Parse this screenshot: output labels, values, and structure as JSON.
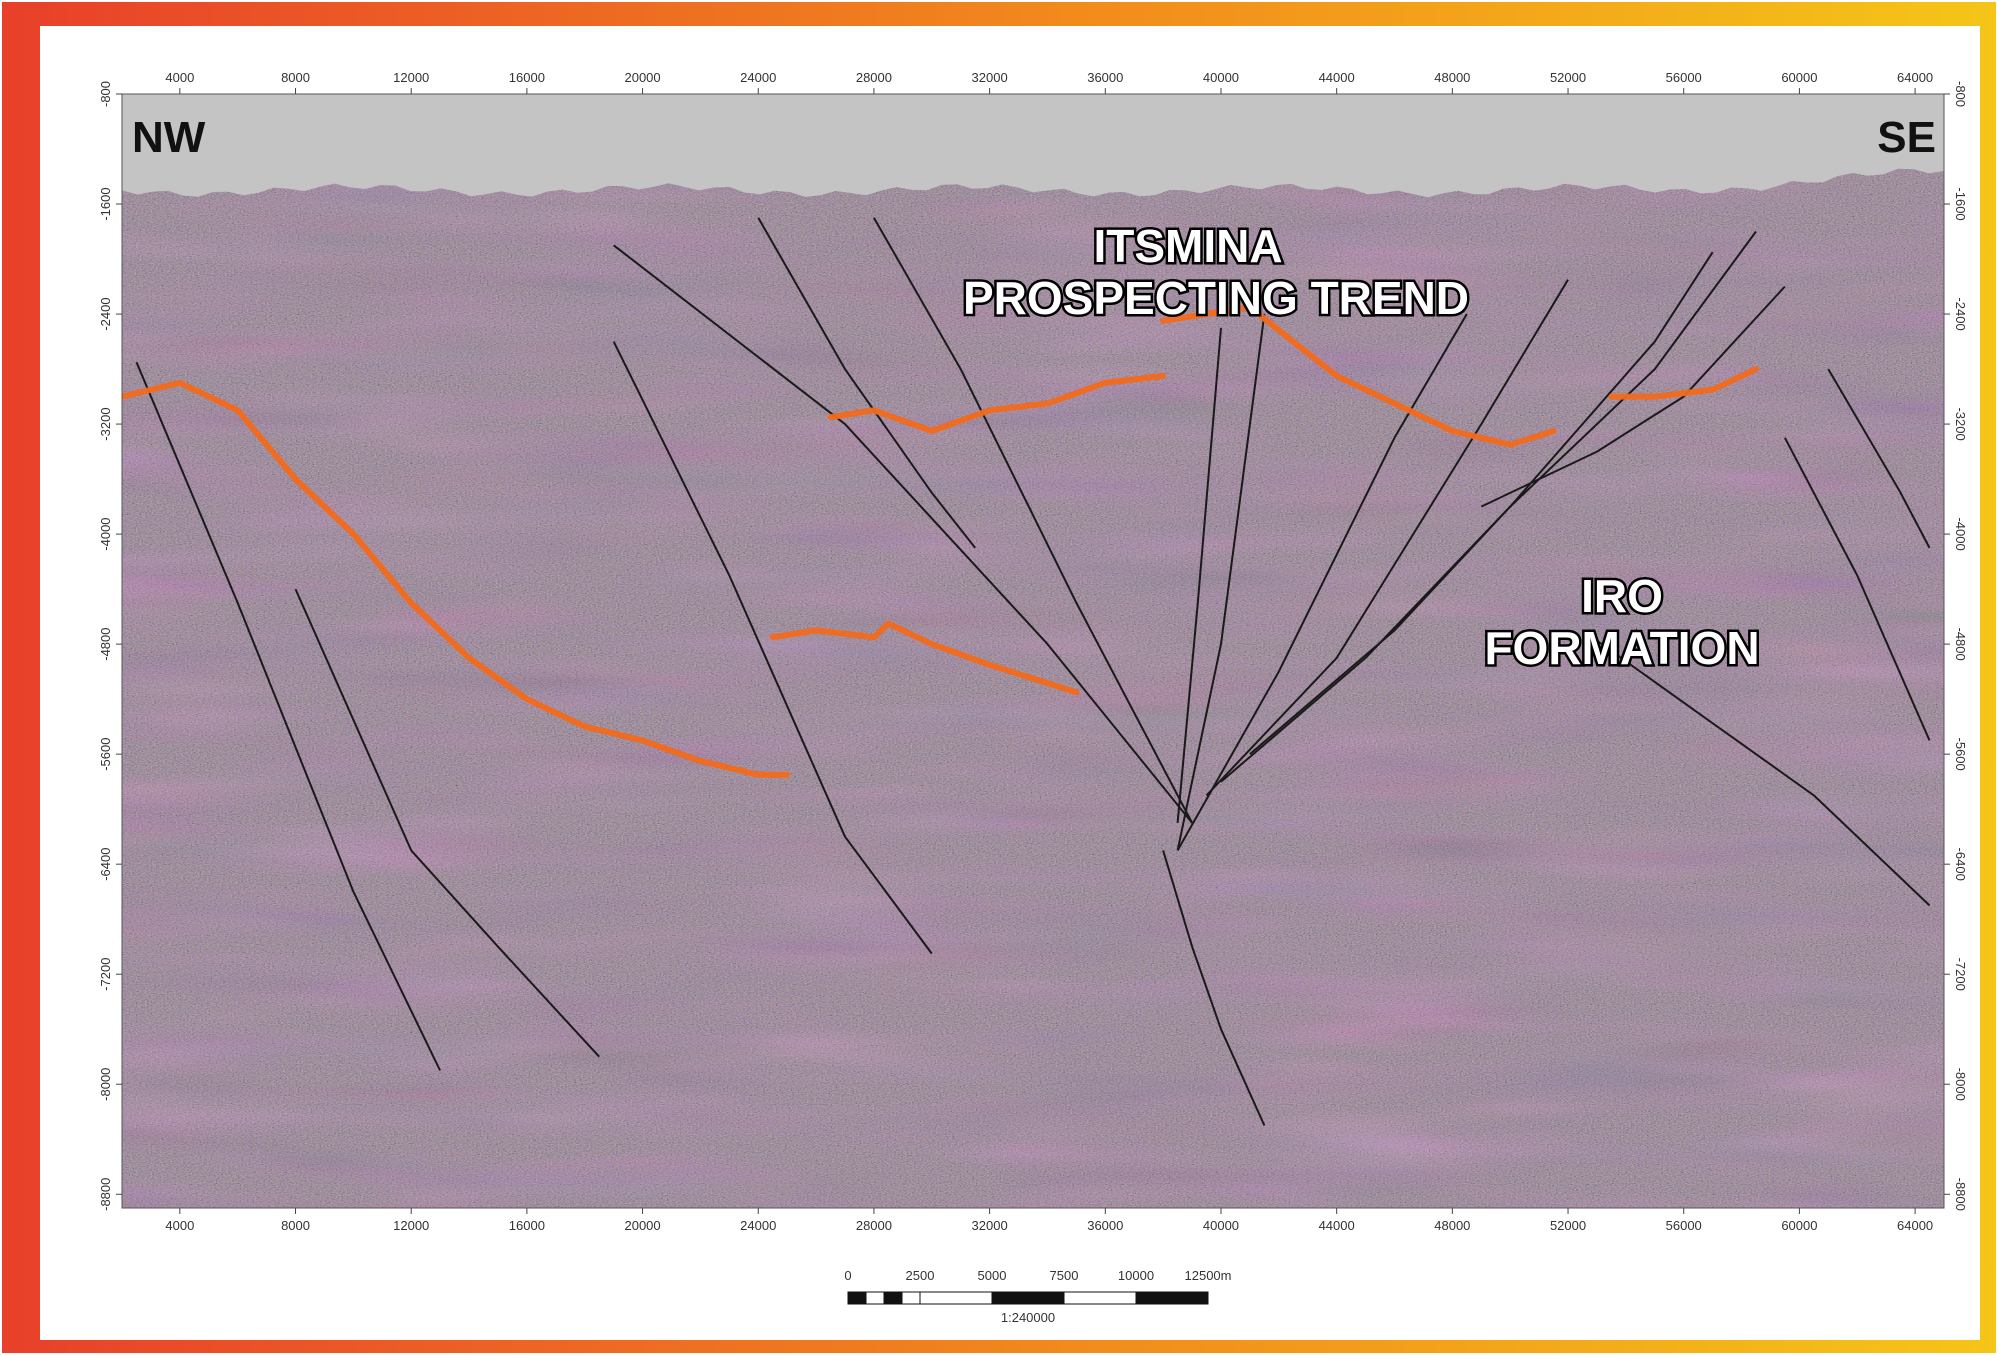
{
  "colors": {
    "border_gradient_start": "#e8402a",
    "border_gradient_mid": "#f28c1c",
    "border_gradient_end": "#f5c518",
    "seismic_base": "#8a7c70",
    "air_gray": "#c4c4c4",
    "horizon_orange": "#f26a1b",
    "fault_black": "#1a1a1a"
  },
  "section": {
    "direction_left": "NW",
    "direction_right": "SE",
    "x_ticks": [
      "4000",
      "8000",
      "12000",
      "16000",
      "20000",
      "24000",
      "28000",
      "32000",
      "36000",
      "40000",
      "44000",
      "48000",
      "52000",
      "56000",
      "60000",
      "64000"
    ],
    "y_ticks": [
      "-800",
      "-1600",
      "-2400",
      "-3200",
      "-4000",
      "-4800",
      "-5600",
      "-6400",
      "-7200",
      "-8000",
      "-8800"
    ]
  },
  "annotations": {
    "trend_line1": "ITSMINA",
    "trend_line2": "PROSPECTING TREND",
    "formation_line1": "IRO",
    "formation_line2": "FORMATION"
  },
  "scale_bar": {
    "labels": [
      "0",
      "2500",
      "5000",
      "7500",
      "10000",
      "12500m"
    ],
    "ratio": "1:240000"
  },
  "horizons": [
    {
      "x": [
        2000,
        4000,
        6000,
        8000,
        10000,
        12000,
        14000,
        16000,
        18000,
        20000,
        22000,
        24000,
        25000
      ],
      "depth": [
        -3000,
        -2900,
        -3100,
        -3600,
        -4000,
        -4500,
        -4900,
        -5200,
        -5400,
        -5500,
        -5650,
        -5750,
        -5750
      ]
    },
    {
      "x": [
        26500,
        28000,
        30000,
        32000,
        34000,
        36000,
        38000
      ],
      "depth": [
        -3150,
        -3100,
        -3250,
        -3100,
        -3050,
        -2900,
        -2850
      ]
    },
    {
      "x": [
        38000,
        39500,
        41000,
        42500,
        44000,
        46000,
        48000,
        50000,
        51500
      ],
      "depth": [
        -2450,
        -2400,
        -2350,
        -2600,
        -2850,
        -3050,
        -3250,
        -3350,
        -3250
      ]
    },
    {
      "x": [
        53500,
        55000,
        57000,
        58500
      ],
      "depth": [
        -3000,
        -3000,
        -2950,
        -2800
      ]
    },
    {
      "x": [
        24500,
        26000,
        28000,
        28500,
        30000,
        32000,
        33500,
        35000
      ],
      "depth": [
        -4750,
        -4700,
        -4750,
        -4650,
        -4800,
        -4950,
        -5050,
        -5150
      ]
    }
  ],
  "faults": [
    {
      "x": [
        2500,
        6000,
        10000,
        13000
      ],
      "depth": [
        -2750,
        -4500,
        -6600,
        -7900
      ]
    },
    {
      "x": [
        8000,
        12000,
        15000,
        18500
      ],
      "depth": [
        -4400,
        -6300,
        -7000,
        -7800
      ]
    },
    {
      "x": [
        19000,
        23000,
        27000,
        30000
      ],
      "depth": [
        -2600,
        -4300,
        -6200,
        -7050
      ]
    },
    {
      "x": [
        19000,
        27000,
        34000,
        39000
      ],
      "depth": [
        -1900,
        -3200,
        -4800,
        -6100
      ]
    },
    {
      "x": [
        24000,
        27000,
        30000,
        31500
      ],
      "depth": [
        -1700,
        -2800,
        -3700,
        -4100
      ]
    },
    {
      "x": [
        28000,
        31000,
        35000,
        39000
      ],
      "depth": [
        -1700,
        -2800,
        -4500,
        -6100
      ]
    },
    {
      "x": [
        38000,
        39000,
        40000,
        41500
      ],
      "depth": [
        -6300,
        -7000,
        -7600,
        -8300
      ]
    },
    {
      "x": [
        38500,
        39200,
        40000
      ],
      "depth": [
        -6100,
        -4500,
        -2500
      ]
    },
    {
      "x": [
        38500,
        40000,
        41500
      ],
      "depth": [
        -6300,
        -4800,
        -2400
      ]
    },
    {
      "x": [
        38500,
        42000,
        46000,
        48500
      ],
      "depth": [
        -6300,
        -5000,
        -3300,
        -2400
      ]
    },
    {
      "x": [
        39500,
        44000,
        49000,
        52000
      ],
      "depth": [
        -5900,
        -4900,
        -3200,
        -2150
      ]
    },
    {
      "x": [
        40000,
        45000,
        50000,
        55000,
        57000
      ],
      "depth": [
        -5800,
        -4900,
        -3800,
        -2600,
        -1950
      ]
    },
    {
      "x": [
        41000,
        46000,
        50000,
        55000,
        58500
      ],
      "depth": [
        -5600,
        -4700,
        -3800,
        -2800,
        -1800
      ]
    },
    {
      "x": [
        49000,
        53000,
        56000,
        59500
      ],
      "depth": [
        -3800,
        -3400,
        -3000,
        -2200
      ]
    },
    {
      "x": [
        52500,
        56500,
        60500,
        64500
      ],
      "depth": [
        -4700,
        -5300,
        -5900,
        -6700
      ]
    },
    {
      "x": [
        59500,
        62000,
        64500
      ],
      "depth": [
        -3300,
        -4300,
        -5500
      ]
    },
    {
      "x": [
        61000,
        63500,
        64500
      ],
      "depth": [
        -2800,
        -3700,
        -4100
      ]
    }
  ]
}
